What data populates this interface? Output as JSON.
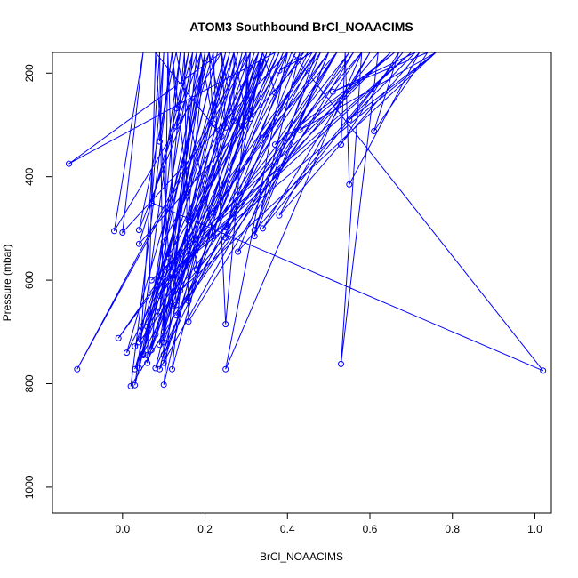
{
  "chart_data": {
    "type": "line",
    "title": "ATOM3 Southbound BrCl_NOAACIMS",
    "xlabel": "BrCl_NOAACIMS",
    "ylabel": "Pressure (mbar)",
    "xlim": [
      -0.17,
      1.04
    ],
    "ylim": [
      1050,
      160
    ],
    "y_reversed": true,
    "x_ticks": [
      0.0,
      0.2,
      0.4,
      0.6,
      0.8,
      1.0
    ],
    "x_tick_labels": [
      "0.0",
      "0.2",
      "0.4",
      "0.6",
      "0.8",
      "1.0"
    ],
    "y_ticks": [
      200,
      400,
      600,
      800,
      1000
    ],
    "y_tick_labels": [
      "200",
      "400",
      "600",
      "800",
      "1000"
    ],
    "grid": false,
    "color": "#0000ff",
    "points": [
      {
        "x": 0.16,
        "y": 640
      },
      {
        "x": 0.35,
        "y": 160
      },
      {
        "x": 0.03,
        "y": 772
      },
      {
        "x": 0.25,
        "y": 160
      },
      {
        "x": 0.1,
        "y": 700
      },
      {
        "x": 0.2,
        "y": 160
      },
      {
        "x": 0.05,
        "y": 745
      },
      {
        "x": 0.17,
        "y": 160
      },
      {
        "x": 0.12,
        "y": 650
      },
      {
        "x": 0.08,
        "y": 160
      },
      {
        "x": 0.06,
        "y": 760
      },
      {
        "x": 0.28,
        "y": 160
      },
      {
        "x": 0.09,
        "y": 772
      },
      {
        "x": 0.52,
        "y": 160
      },
      {
        "x": 0.02,
        "y": 805
      },
      {
        "x": 0.12,
        "y": 160
      },
      {
        "x": 0.18,
        "y": 580
      },
      {
        "x": 0.4,
        "y": 160
      },
      {
        "x": 0.11,
        "y": 555
      },
      {
        "x": 0.23,
        "y": 160
      },
      {
        "x": 0.03,
        "y": 803
      },
      {
        "x": 0.14,
        "y": 160
      },
      {
        "x": 0.07,
        "y": 735
      },
      {
        "x": 0.32,
        "y": 160
      },
      {
        "x": 0.09,
        "y": 725
      },
      {
        "x": 0.19,
        "y": 160
      },
      {
        "x": 0.04,
        "y": 770
      },
      {
        "x": 0.09,
        "y": 160
      },
      {
        "x": 0.1,
        "y": 760
      },
      {
        "x": 0.33,
        "y": 160
      },
      {
        "x": 0.12,
        "y": 772
      },
      {
        "x": 0.2,
        "y": 160
      },
      {
        "x": 0.09,
        "y": 660
      },
      {
        "x": 0.15,
        "y": 160
      },
      {
        "x": 0.16,
        "y": 680
      },
      {
        "x": 0.56,
        "y": 160
      },
      {
        "x": 0.04,
        "y": 720
      },
      {
        "x": 0.26,
        "y": 160
      },
      {
        "x": 0.05,
        "y": 742
      },
      {
        "x": 0.42,
        "y": 160
      },
      {
        "x": 0.08,
        "y": 770
      },
      {
        "x": 0.27,
        "y": 160
      },
      {
        "x": 0.03,
        "y": 728
      },
      {
        "x": 0.36,
        "y": 160
      },
      {
        "x": 0.06,
        "y": 745
      },
      {
        "x": 0.3,
        "y": 160
      },
      {
        "x": -0.11,
        "y": 772
      },
      {
        "x": 0.31,
        "y": 160
      },
      {
        "x": 0.25,
        "y": 685
      },
      {
        "x": 0.22,
        "y": 160
      },
      {
        "x": 0.01,
        "y": 740
      },
      {
        "x": 0.38,
        "y": 160
      },
      {
        "x": 0.08,
        "y": 705
      },
      {
        "x": 0.39,
        "y": 160
      },
      {
        "x": 0.1,
        "y": 744
      },
      {
        "x": 0.45,
        "y": 160
      },
      {
        "x": 0.04,
        "y": 530
      },
      {
        "x": 0.18,
        "y": 160
      },
      {
        "x": 0.1,
        "y": 802
      },
      {
        "x": 0.29,
        "y": 160
      },
      {
        "x": 0.13,
        "y": 648
      },
      {
        "x": 0.11,
        "y": 160
      },
      {
        "x": 0.1,
        "y": 720
      },
      {
        "x": 0.34,
        "y": 160
      },
      {
        "x": 0.06,
        "y": 690
      },
      {
        "x": 0.5,
        "y": 160
      },
      {
        "x": -0.01,
        "y": 712
      },
      {
        "x": 0.47,
        "y": 160
      },
      {
        "x": 0.09,
        "y": 630
      },
      {
        "x": 0.55,
        "y": 160
      },
      {
        "x": 0.13,
        "y": 668
      },
      {
        "x": 0.58,
        "y": 160
      },
      {
        "x": 0.1,
        "y": 608
      },
      {
        "x": 0.65,
        "y": 160
      },
      {
        "x": 0.07,
        "y": 600
      },
      {
        "x": 0.7,
        "y": 160
      },
      {
        "x": 0.12,
        "y": 585
      },
      {
        "x": 0.76,
        "y": 160
      },
      {
        "x": 0.14,
        "y": 620
      },
      {
        "x": 0.62,
        "y": 160
      },
      {
        "x": 0.53,
        "y": 762
      },
      {
        "x": 0.58,
        "y": 160
      },
      {
        "x": 0.25,
        "y": 772
      },
      {
        "x": 0.4,
        "y": 160
      },
      {
        "x": 0.0,
        "y": 508
      },
      {
        "x": 0.05,
        "y": 160
      },
      {
        "x": -0.02,
        "y": 505
      },
      {
        "x": 0.24,
        "y": 160
      },
      {
        "x": -0.13,
        "y": 375
      },
      {
        "x": 0.37,
        "y": 160
      },
      {
        "x": 0.22,
        "y": 470
      },
      {
        "x": 0.48,
        "y": 160
      },
      {
        "x": 0.28,
        "y": 545
      },
      {
        "x": 0.68,
        "y": 160
      },
      {
        "x": 0.34,
        "y": 500
      },
      {
        "x": 0.6,
        "y": 160
      },
      {
        "x": 0.38,
        "y": 475
      },
      {
        "x": 0.72,
        "y": 160
      },
      {
        "x": 0.55,
        "y": 415
      },
      {
        "x": 0.54,
        "y": 160
      },
      {
        "x": 0.53,
        "y": 338
      },
      {
        "x": 0.67,
        "y": 160
      },
      {
        "x": 0.61,
        "y": 312
      },
      {
        "x": 0.74,
        "y": 160
      },
      {
        "x": 0.51,
        "y": 236
      },
      {
        "x": 0.71,
        "y": 160
      },
      {
        "x": 0.55,
        "y": 290
      },
      {
        "x": 0.76,
        "y": 160
      },
      {
        "x": 0.43,
        "y": 310
      },
      {
        "x": 0.66,
        "y": 160
      },
      {
        "x": 0.37,
        "y": 338
      },
      {
        "x": 0.52,
        "y": 160
      },
      {
        "x": 0.34,
        "y": 325
      },
      {
        "x": 0.46,
        "y": 160
      },
      {
        "x": 0.38,
        "y": 195
      },
      {
        "x": 0.44,
        "y": 160
      },
      {
        "x": 0.37,
        "y": 238
      },
      {
        "x": 0.34,
        "y": 160
      },
      {
        "x": 0.31,
        "y": 288
      },
      {
        "x": 0.3,
        "y": 160
      },
      {
        "x": 0.3,
        "y": 284
      },
      {
        "x": 0.27,
        "y": 160
      },
      {
        "x": 0.27,
        "y": 293
      },
      {
        "x": 0.24,
        "y": 160
      },
      {
        "x": 0.25,
        "y": 305
      },
      {
        "x": 0.21,
        "y": 160
      },
      {
        "x": 0.22,
        "y": 297
      },
      {
        "x": 0.19,
        "y": 160
      },
      {
        "x": 0.13,
        "y": 303
      },
      {
        "x": 0.16,
        "y": 160
      },
      {
        "x": 0.13,
        "y": 268
      },
      {
        "x": 0.12,
        "y": 160
      },
      {
        "x": 0.09,
        "y": 332
      },
      {
        "x": 0.1,
        "y": 160
      },
      {
        "x": 0.07,
        "y": 452
      },
      {
        "x": 0.08,
        "y": 160
      },
      {
        "x": 0.24,
        "y": 322
      },
      {
        "x": 0.31,
        "y": 160
      },
      {
        "x": 0.29,
        "y": 302
      },
      {
        "x": 0.35,
        "y": 160
      },
      {
        "x": 0.16,
        "y": 485
      },
      {
        "x": 0.26,
        "y": 160
      },
      {
        "x": 0.13,
        "y": 521
      },
      {
        "x": 0.33,
        "y": 160
      },
      {
        "x": 0.1,
        "y": 526
      },
      {
        "x": 0.21,
        "y": 160
      },
      {
        "x": 0.04,
        "y": 503
      },
      {
        "x": 0.13,
        "y": 160
      },
      {
        "x": 0.22,
        "y": 515
      },
      {
        "x": 0.34,
        "y": 160
      },
      {
        "x": 0.25,
        "y": 518
      },
      {
        "x": 0.43,
        "y": 160
      },
      {
        "x": 0.32,
        "y": 515
      },
      {
        "x": 0.5,
        "y": 160
      },
      {
        "x": 0.32,
        "y": 503
      },
      {
        "x": 0.47,
        "y": 160
      },
      {
        "x": 0.25,
        "y": 498
      },
      {
        "x": 0.41,
        "y": 160
      },
      {
        "x": 1.02,
        "y": 775
      },
      {
        "x": 0.07,
        "y": 450
      },
      {
        "x": 0.17,
        "y": 160
      }
    ]
  }
}
